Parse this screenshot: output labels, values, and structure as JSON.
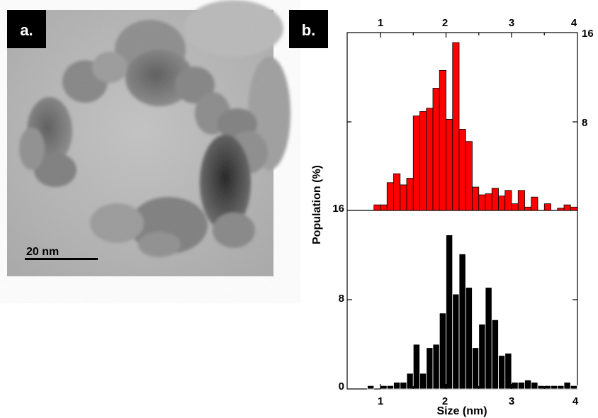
{
  "panel_a": {
    "label": "a.",
    "scale_bar_label": "20 nm"
  },
  "panel_b": {
    "label": "b."
  },
  "colors": {
    "series_top": "#ff0000",
    "series_bottom": "#000000",
    "bar_stroke": "#000000",
    "label_bg": "#000000",
    "label_text": "#ffffff"
  },
  "chart_data": {
    "type": "bar",
    "xlabel": "Size (nm)",
    "ylabel": "Population (%)",
    "x_ticks": [
      "1",
      "2",
      "3",
      "4"
    ],
    "xlim": [
      0.6,
      4.0
    ],
    "grid": false,
    "legend": "none",
    "bar_width": 0.1,
    "panels": [
      {
        "position": "top",
        "color": "#ff0000",
        "ylim": [
          0,
          16
        ],
        "y_ticks_right": [
          "16",
          "8"
        ],
        "y_tick_left": "16",
        "x": [
          0.95,
          1.05,
          1.15,
          1.25,
          1.35,
          1.45,
          1.55,
          1.65,
          1.75,
          1.85,
          1.95,
          2.05,
          2.15,
          2.25,
          2.35,
          2.45,
          2.55,
          2.65,
          2.75,
          2.85,
          2.95,
          3.05,
          3.15,
          3.25,
          3.35,
          3.55,
          3.75,
          3.85,
          3.95
        ],
        "values": [
          0.5,
          0.5,
          2.5,
          3.3,
          2.3,
          2.9,
          8.5,
          8.9,
          9.2,
          11.0,
          12.6,
          8.2,
          15.1,
          7.3,
          6.2,
          2.1,
          1.4,
          1.5,
          2.0,
          1.3,
          1.8,
          0.6,
          1.8,
          0.3,
          1.2,
          0.6,
          0.2,
          0.5,
          0.3
        ]
      },
      {
        "position": "bottom",
        "color": "#000000",
        "ylim": [
          0,
          16
        ],
        "y_ticks_left": [
          "0",
          "8"
        ],
        "x": [
          0.85,
          1.05,
          1.15,
          1.25,
          1.35,
          1.45,
          1.55,
          1.65,
          1.75,
          1.85,
          1.95,
          2.05,
          2.15,
          2.25,
          2.35,
          2.45,
          2.55,
          2.65,
          2.75,
          2.85,
          2.95,
          3.05,
          3.15,
          3.25,
          3.35,
          3.45,
          3.55,
          3.65,
          3.75,
          3.85,
          3.95,
          4.05
        ],
        "values": [
          0.3,
          0.3,
          0.3,
          0.6,
          0.6,
          1.4,
          4.0,
          1.4,
          3.7,
          4.0,
          6.8,
          13.8,
          8.5,
          12.1,
          9.1,
          3.7,
          5.8,
          9.1,
          6.2,
          3.0,
          3.2,
          0.6,
          0.6,
          0.8,
          0.6,
          0.3,
          0.3,
          0.3,
          0.3,
          0.6,
          0.3,
          0.3
        ]
      }
    ]
  }
}
